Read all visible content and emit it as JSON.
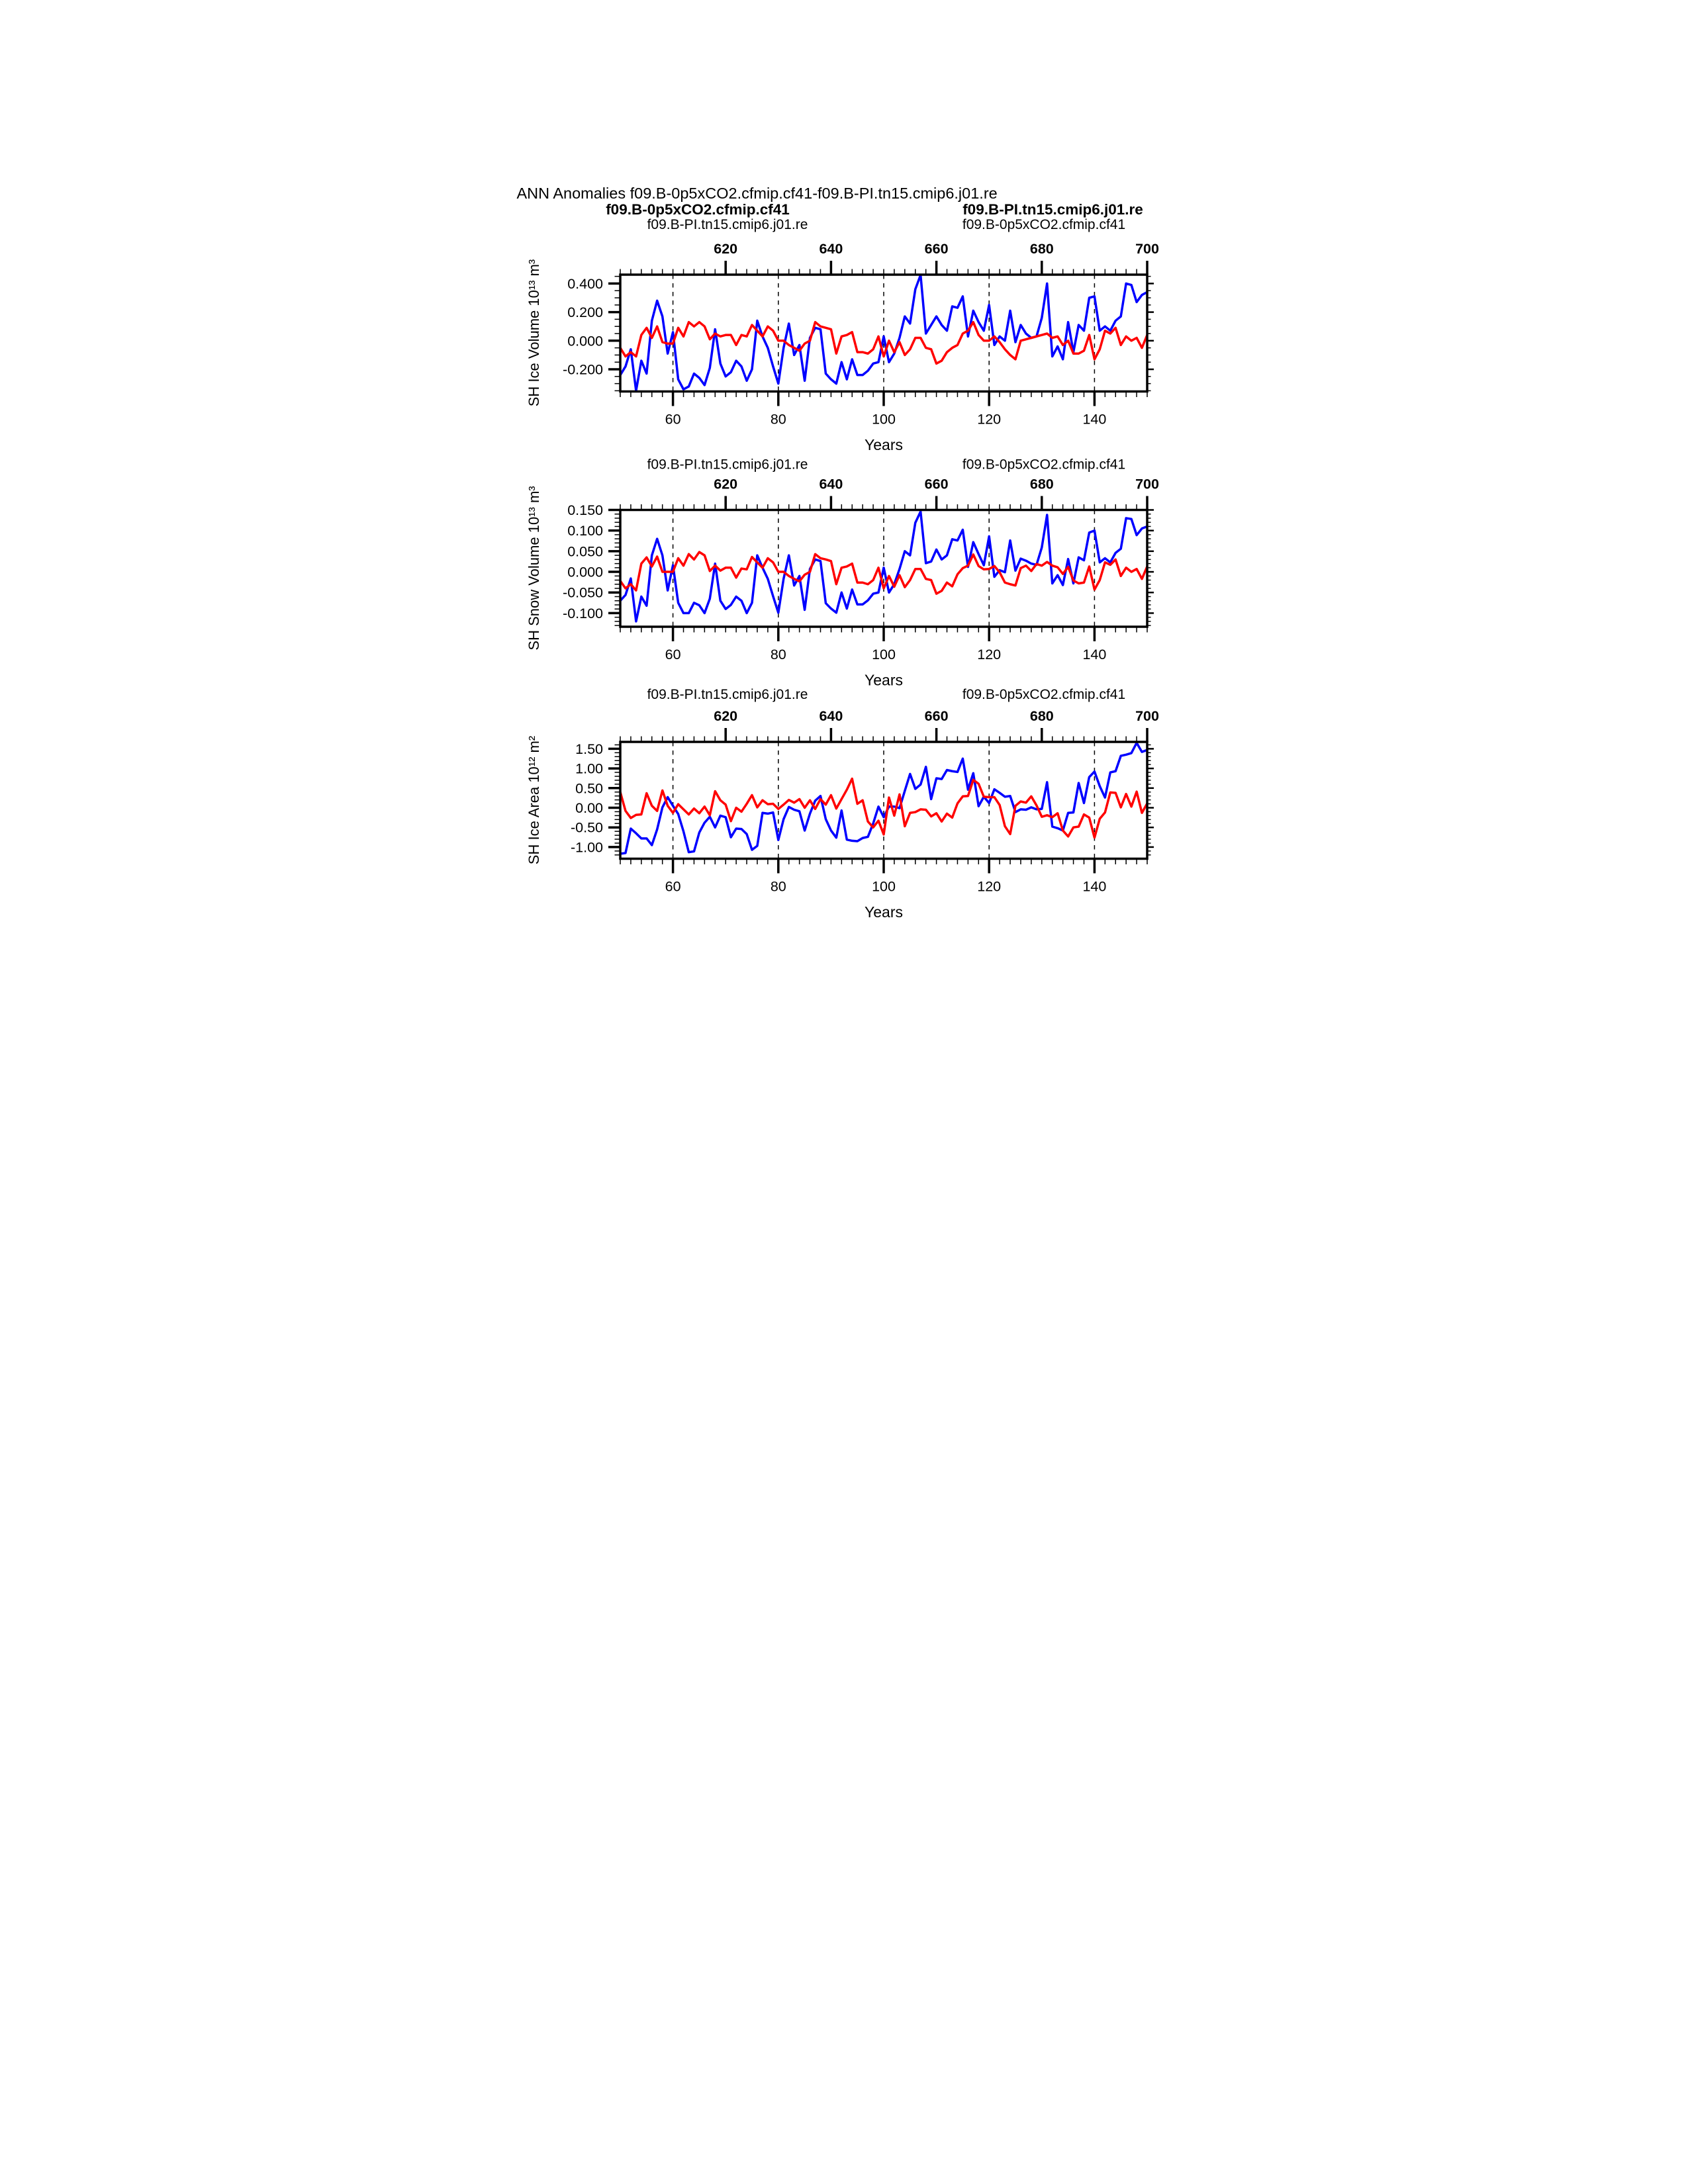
{
  "title": "ANN Anomalies f09.B-0p5xCO2.cfmip.cf41-f09.B-PI.tn15.cmip6.j01.re",
  "header": {
    "case_blue": "f09.B-0p5xCO2.cfmip.cf41",
    "case_red": "f09.B-PI.tn15.cmip6.j01.re"
  },
  "colors": {
    "blue_series": "#0000ff",
    "red_series": "#ff0000",
    "axis_black": "#000000"
  },
  "x_axis": {
    "label": "Years",
    "range": [
      50,
      150
    ],
    "minor_step": 2,
    "gridlines": [
      60,
      80,
      100,
      120,
      140
    ],
    "bottom_label_color": "#0000ff",
    "top_label_color": "#ff0000",
    "bottom_ticks": [
      {
        "x": 60,
        "label": "60"
      },
      {
        "x": 80,
        "label": "80"
      },
      {
        "x": 100,
        "label": "100"
      },
      {
        "x": 120,
        "label": "120"
      },
      {
        "x": 140,
        "label": "140"
      }
    ],
    "top_ticks": [
      {
        "x": 70,
        "label": "620"
      },
      {
        "x": 90,
        "label": "640"
      },
      {
        "x": 110,
        "label": "660"
      },
      {
        "x": 130,
        "label": "680"
      },
      {
        "x": 150,
        "label": "700"
      }
    ]
  },
  "chart_data": [
    {
      "type": "line",
      "ylabel": "SH Ice Volume 10¹³ m³",
      "xlabel": "Years",
      "legend_left": {
        "text": "f09.B-PI.tn15.cmip6.j01.re",
        "color": "#ff0000"
      },
      "legend_right": {
        "text": "f09.B-0p5xCO2.cfmip.cf41",
        "color": "#0000ff"
      },
      "x_start": 50,
      "x_step": 1,
      "ylim": [
        -0.355,
        0.462
      ],
      "y_minor_step": 0.05,
      "yticks": [
        {
          "v": 0.4,
          "label": "0.400"
        },
        {
          "v": 0.2,
          "label": "0.200"
        },
        {
          "v": 0.0,
          "label": "0.000"
        },
        {
          "v": -0.2,
          "label": "-0.200"
        }
      ],
      "series": [
        {
          "name": "f09.B-0p5xCO2.cfmip.cf41",
          "color": "#0000ff",
          "values": [
            -0.24,
            -0.18,
            -0.06,
            -0.35,
            -0.14,
            -0.23,
            0.14,
            0.28,
            0.17,
            -0.09,
            0.06,
            -0.27,
            -0.34,
            -0.32,
            -0.23,
            -0.26,
            -0.31,
            -0.19,
            0.08,
            -0.16,
            -0.25,
            -0.22,
            -0.14,
            -0.18,
            -0.28,
            -0.2,
            0.14,
            0.03,
            -0.05,
            -0.18,
            -0.3,
            -0.05,
            0.12,
            -0.1,
            -0.03,
            -0.28,
            0.02,
            0.09,
            0.08,
            -0.23,
            -0.27,
            -0.3,
            -0.15,
            -0.27,
            -0.13,
            -0.24,
            -0.24,
            -0.21,
            -0.16,
            -0.15,
            0.03,
            -0.15,
            -0.09,
            0.02,
            0.17,
            0.12,
            0.36,
            0.46,
            0.05,
            0.11,
            0.17,
            0.11,
            0.07,
            0.24,
            0.23,
            0.31,
            0.03,
            0.21,
            0.13,
            0.07,
            0.25,
            -0.03,
            0.03,
            0.0,
            0.21,
            -0.01,
            0.11,
            0.05,
            0.02,
            0.03,
            0.16,
            0.4,
            -0.11,
            -0.04,
            -0.13,
            0.13,
            -0.08,
            0.11,
            0.07,
            0.3,
            0.31,
            0.07,
            0.1,
            0.07,
            0.14,
            0.17,
            0.4,
            0.39,
            0.27,
            0.32,
            0.34
          ]
        },
        {
          "name": "f09.B-PI.tn15.cmip6.j01.re",
          "color": "#ff0000",
          "values": [
            -0.05,
            -0.11,
            -0.08,
            -0.11,
            0.04,
            0.09,
            0.02,
            0.1,
            -0.01,
            -0.02,
            -0.02,
            0.09,
            0.03,
            0.13,
            0.1,
            0.13,
            0.1,
            0.01,
            0.05,
            0.03,
            0.04,
            0.04,
            -0.03,
            0.04,
            0.03,
            0.11,
            0.07,
            0.03,
            0.1,
            0.07,
            0.0,
            0.0,
            -0.03,
            -0.05,
            -0.07,
            -0.02,
            0.0,
            0.13,
            0.1,
            0.09,
            0.08,
            -0.09,
            0.03,
            0.04,
            0.06,
            -0.08,
            -0.08,
            -0.09,
            -0.06,
            0.03,
            -0.11,
            0.0,
            -0.08,
            -0.01,
            -0.1,
            -0.06,
            0.02,
            0.02,
            -0.05,
            -0.06,
            -0.16,
            -0.14,
            -0.08,
            -0.05,
            -0.03,
            0.05,
            0.07,
            0.13,
            0.04,
            0.0,
            0.0,
            0.03,
            -0.01,
            -0.06,
            -0.1,
            -0.13,
            0.0,
            0.01,
            0.02,
            0.03,
            0.04,
            0.05,
            0.02,
            0.03,
            -0.03,
            0.0,
            -0.09,
            -0.09,
            -0.07,
            0.04,
            -0.13,
            -0.06,
            0.07,
            0.05,
            0.09,
            -0.03,
            0.03,
            0.0,
            0.02,
            -0.05,
            0.04
          ]
        }
      ]
    },
    {
      "type": "line",
      "ylabel": "SH Snow Volume 10¹³ m³",
      "xlabel": "Years",
      "legend_left": {
        "text": "f09.B-PI.tn15.cmip6.j01.re",
        "color": "#ff0000"
      },
      "legend_right": {
        "text": "f09.B-0p5xCO2.cfmip.cf41",
        "color": "#0000ff"
      },
      "x_start": 50,
      "x_step": 1,
      "ylim": [
        -0.133,
        0.15
      ],
      "y_minor_step": 0.01,
      "yticks": [
        {
          "v": 0.15,
          "label": "0.150"
        },
        {
          "v": 0.1,
          "label": "0.100"
        },
        {
          "v": 0.05,
          "label": "0.050"
        },
        {
          "v": 0.0,
          "label": "0.000"
        },
        {
          "v": -0.05,
          "label": "-0.050"
        },
        {
          "v": -0.1,
          "label": "-0.100"
        }
      ],
      "series": [
        {
          "name": "f09.B-0p5xCO2.cfmip.cf41",
          "color": "#0000ff",
          "values": [
            -0.07,
            -0.056,
            -0.016,
            -0.12,
            -0.06,
            -0.082,
            0.04,
            0.08,
            0.04,
            -0.045,
            0.016,
            -0.075,
            -0.1,
            -0.1,
            -0.075,
            -0.081,
            -0.1,
            -0.065,
            0.02,
            -0.07,
            -0.09,
            -0.08,
            -0.06,
            -0.07,
            -0.1,
            -0.075,
            0.04,
            0.01,
            -0.017,
            -0.059,
            -0.099,
            -0.017,
            0.04,
            -0.033,
            -0.01,
            -0.092,
            0.007,
            0.03,
            0.026,
            -0.076,
            -0.089,
            -0.099,
            -0.05,
            -0.089,
            -0.043,
            -0.079,
            -0.079,
            -0.069,
            -0.053,
            -0.05,
            0.01,
            -0.05,
            -0.03,
            0.007,
            0.05,
            0.04,
            0.119,
            0.146,
            0.021,
            0.025,
            0.054,
            0.03,
            0.04,
            0.079,
            0.076,
            0.102,
            0.012,
            0.072,
            0.043,
            0.016,
            0.086,
            -0.012,
            0.004,
            -0.001,
            0.076,
            0.003,
            0.032,
            0.027,
            0.02,
            0.017,
            0.059,
            0.138,
            -0.028,
            -0.008,
            -0.032,
            0.031,
            -0.028,
            0.035,
            0.028,
            0.095,
            0.1,
            0.023,
            0.033,
            0.023,
            0.046,
            0.056,
            0.13,
            0.128,
            0.089,
            0.105,
            0.11
          ]
        },
        {
          "name": "f09.B-PI.tn15.cmip6.j01.re",
          "color": "#ff0000",
          "values": [
            -0.022,
            -0.04,
            -0.03,
            -0.045,
            0.02,
            0.035,
            0.013,
            0.037,
            0.0,
            0.0,
            0.0,
            0.033,
            0.015,
            0.043,
            0.03,
            0.048,
            0.04,
            0.002,
            0.015,
            0.003,
            0.01,
            0.01,
            -0.014,
            0.008,
            0.006,
            0.036,
            0.023,
            0.01,
            0.033,
            0.023,
            0.0,
            0.0,
            -0.01,
            -0.017,
            -0.023,
            -0.007,
            0.0,
            0.043,
            0.033,
            0.03,
            0.026,
            -0.03,
            0.01,
            0.013,
            0.02,
            -0.026,
            -0.026,
            -0.03,
            -0.02,
            0.01,
            -0.04,
            -0.01,
            -0.036,
            -0.008,
            -0.037,
            -0.02,
            0.007,
            0.007,
            -0.017,
            -0.02,
            -0.053,
            -0.046,
            -0.026,
            -0.035,
            -0.006,
            0.009,
            0.015,
            0.042,
            0.014,
            0.006,
            0.007,
            0.014,
            -0.001,
            -0.026,
            -0.03,
            -0.033,
            0.009,
            0.015,
            0.002,
            0.019,
            0.015,
            0.024,
            0.015,
            0.011,
            -0.005,
            0.012,
            -0.021,
            -0.028,
            -0.026,
            0.013,
            -0.043,
            -0.02,
            0.023,
            0.017,
            0.03,
            -0.01,
            0.01,
            0.0,
            0.007,
            -0.017,
            0.013
          ]
        }
      ]
    },
    {
      "type": "line",
      "ylabel": "SH Ice Area 10¹² m²",
      "xlabel": "Years",
      "legend_left": {
        "text": "f09.B-PI.tn15.cmip6.j01.re",
        "color": "#ff0000"
      },
      "legend_right": {
        "text": "f09.B-0p5xCO2.cfmip.cf41",
        "color": "#0000ff"
      },
      "x_start": 50,
      "x_step": 1,
      "ylim": [
        -1.296,
        1.675
      ],
      "y_minor_step": 0.1,
      "yticks": [
        {
          "v": 1.5,
          "label": "1.50"
        },
        {
          "v": 1.0,
          "label": "1.00"
        },
        {
          "v": 0.5,
          "label": "0.50"
        },
        {
          "v": 0.0,
          "label": "0.00"
        },
        {
          "v": -0.5,
          "label": "-0.50"
        },
        {
          "v": -1.0,
          "label": "-1.00"
        }
      ],
      "series": [
        {
          "name": "f09.B-0p5xCO2.cfmip.cf41",
          "color": "#0000ff",
          "values": [
            -1.17,
            -1.15,
            -0.53,
            -0.65,
            -0.78,
            -0.78,
            -0.95,
            -0.55,
            0.01,
            0.27,
            0.05,
            -0.16,
            -0.6,
            -1.13,
            -1.11,
            -0.63,
            -0.38,
            -0.23,
            -0.5,
            -0.2,
            -0.24,
            -0.75,
            -0.53,
            -0.54,
            -0.67,
            -1.07,
            -0.97,
            -0.13,
            -0.15,
            -0.12,
            -0.82,
            -0.29,
            0.02,
            -0.05,
            -0.09,
            -0.58,
            -0.15,
            0.18,
            0.3,
            -0.29,
            -0.58,
            -0.76,
            -0.07,
            -0.81,
            -0.84,
            -0.85,
            -0.77,
            -0.74,
            -0.4,
            0.03,
            -0.24,
            0.03,
            0.03,
            -0.01,
            0.43,
            0.86,
            0.48,
            0.59,
            1.04,
            0.22,
            0.75,
            0.73,
            0.96,
            0.93,
            0.91,
            1.25,
            0.46,
            0.88,
            0.04,
            0.28,
            0.12,
            0.47,
            0.38,
            0.28,
            0.3,
            -0.11,
            -0.04,
            -0.05,
            0.01,
            -0.04,
            -0.03,
            0.65,
            -0.48,
            -0.52,
            -0.58,
            -0.13,
            -0.12,
            0.63,
            0.12,
            0.78,
            0.92,
            0.55,
            0.26,
            0.9,
            0.93,
            1.32,
            1.35,
            1.39,
            1.65,
            1.42,
            1.47
          ]
        },
        {
          "name": "f09.B-PI.tn15.cmip6.j01.re",
          "color": "#ff0000",
          "values": [
            0.4,
            -0.08,
            -0.26,
            -0.18,
            -0.17,
            0.37,
            0.05,
            -0.08,
            0.44,
            0.05,
            -0.13,
            0.09,
            -0.04,
            -0.17,
            -0.02,
            -0.14,
            0.03,
            -0.19,
            0.42,
            0.19,
            0.08,
            -0.34,
            0.0,
            -0.1,
            0.1,
            0.32,
            0.01,
            0.19,
            0.09,
            0.1,
            -0.03,
            0.08,
            0.2,
            0.13,
            0.22,
            0.0,
            0.19,
            -0.03,
            0.22,
            0.08,
            0.32,
            -0.02,
            0.22,
            0.46,
            0.74,
            0.1,
            0.19,
            -0.35,
            -0.5,
            -0.33,
            -0.68,
            0.26,
            -0.2,
            0.34,
            -0.47,
            -0.13,
            -0.11,
            -0.04,
            -0.05,
            -0.22,
            -0.14,
            -0.35,
            -0.15,
            -0.25,
            0.11,
            0.29,
            0.3,
            0.71,
            0.61,
            0.28,
            0.27,
            0.27,
            0.07,
            -0.47,
            -0.67,
            0.05,
            0.16,
            0.13,
            0.29,
            0.06,
            -0.23,
            -0.19,
            -0.24,
            -0.14,
            -0.58,
            -0.73,
            -0.5,
            -0.48,
            -0.17,
            -0.25,
            -0.76,
            -0.28,
            -0.12,
            0.39,
            0.38,
            0.01,
            0.35,
            0.03,
            0.41,
            -0.13,
            0.11
          ]
        }
      ]
    }
  ]
}
